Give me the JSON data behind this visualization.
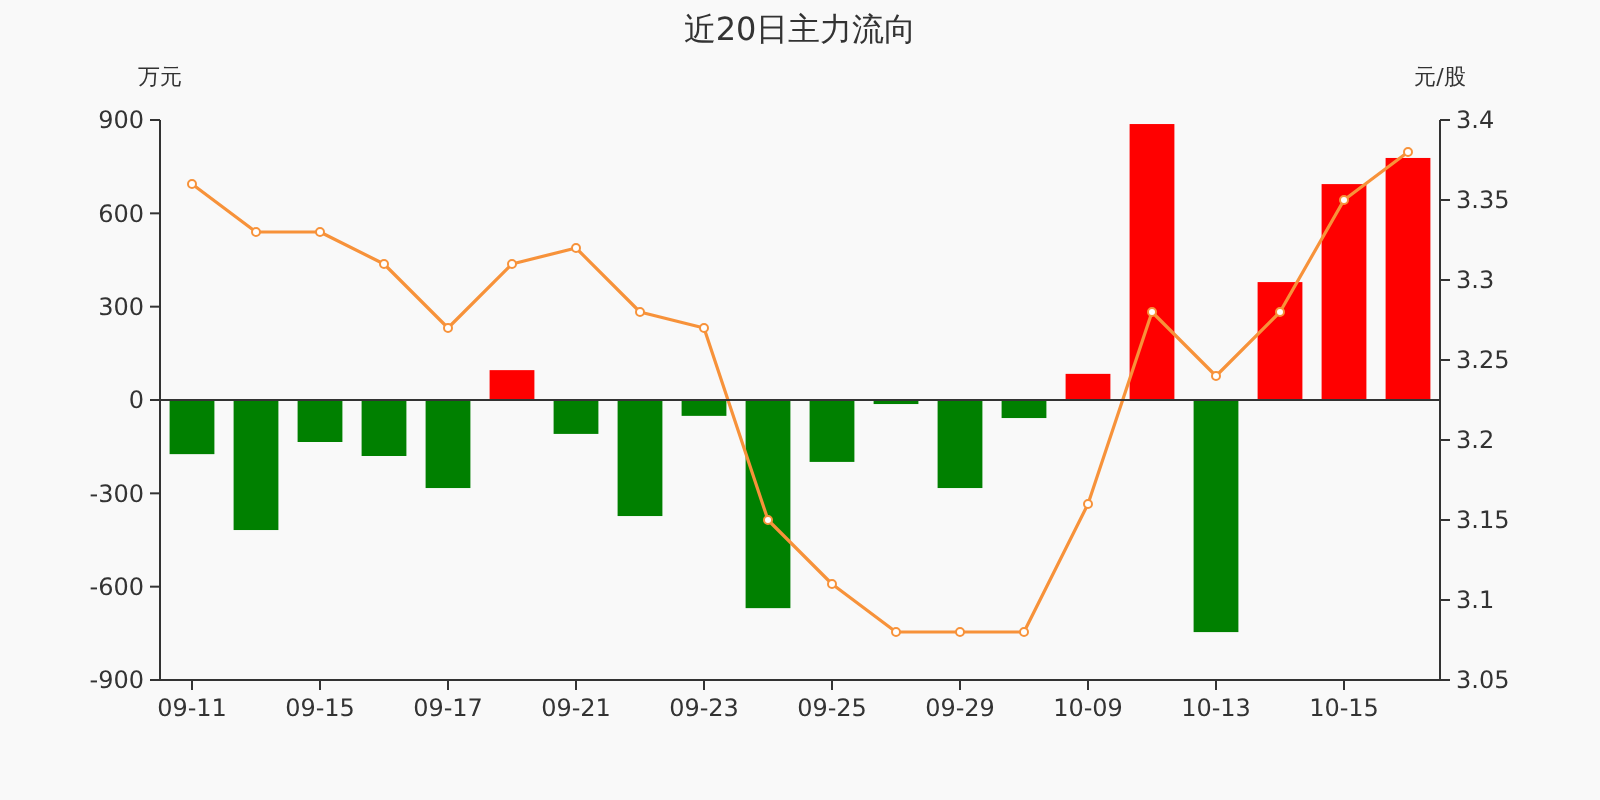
{
  "chart_data": {
    "type": "bar",
    "title": "近20日主力流向",
    "ylabel": "万元",
    "y2label": "元/股",
    "categories": [
      "09-11",
      null,
      "09-15",
      null,
      "09-17",
      null,
      "09-21",
      null,
      "09-23",
      null,
      "09-25",
      null,
      "09-29",
      null,
      "10-09",
      null,
      "10-13",
      null,
      "10-15",
      null
    ],
    "ylim": [
      -900,
      900
    ],
    "yticks": [
      -900,
      -600,
      -300,
      0,
      300,
      600,
      900
    ],
    "y2lim": [
      3.05,
      3.4
    ],
    "y2ticks": [
      3.05,
      3.1,
      3.15,
      3.2,
      3.25,
      3.3,
      3.35,
      3.4
    ],
    "series": [
      {
        "values": [
          -174,
          -418,
          -135,
          -180,
          -283,
          96,
          -109,
          -373,
          -51,
          -669,
          -199,
          -13,
          -283,
          -58,
          84,
          887,
          -746,
          379,
          694,
          778
        ],
        "colors": [
          "#008000",
          "#008000",
          "#008000",
          "#008000",
          "#008000",
          "#ff0000",
          "#008000",
          "#008000",
          "#008000",
          "#008000",
          "#008000",
          "#008000",
          "#008000",
          "#008000",
          "#ff0000",
          "#ff0000",
          "#008000",
          "#ff0000",
          "#ff0000",
          "#ff0000"
        ]
      },
      {
        "type": "line",
        "axis": "y2",
        "color": "#f7923a",
        "marker": "circle",
        "values": [
          3.36,
          3.33,
          3.33,
          3.31,
          3.27,
          3.31,
          3.32,
          3.28,
          3.27,
          3.15,
          3.11,
          3.08,
          3.08,
          3.08,
          3.16,
          3.28,
          3.24,
          3.28,
          3.35,
          3.38
        ]
      }
    ]
  }
}
